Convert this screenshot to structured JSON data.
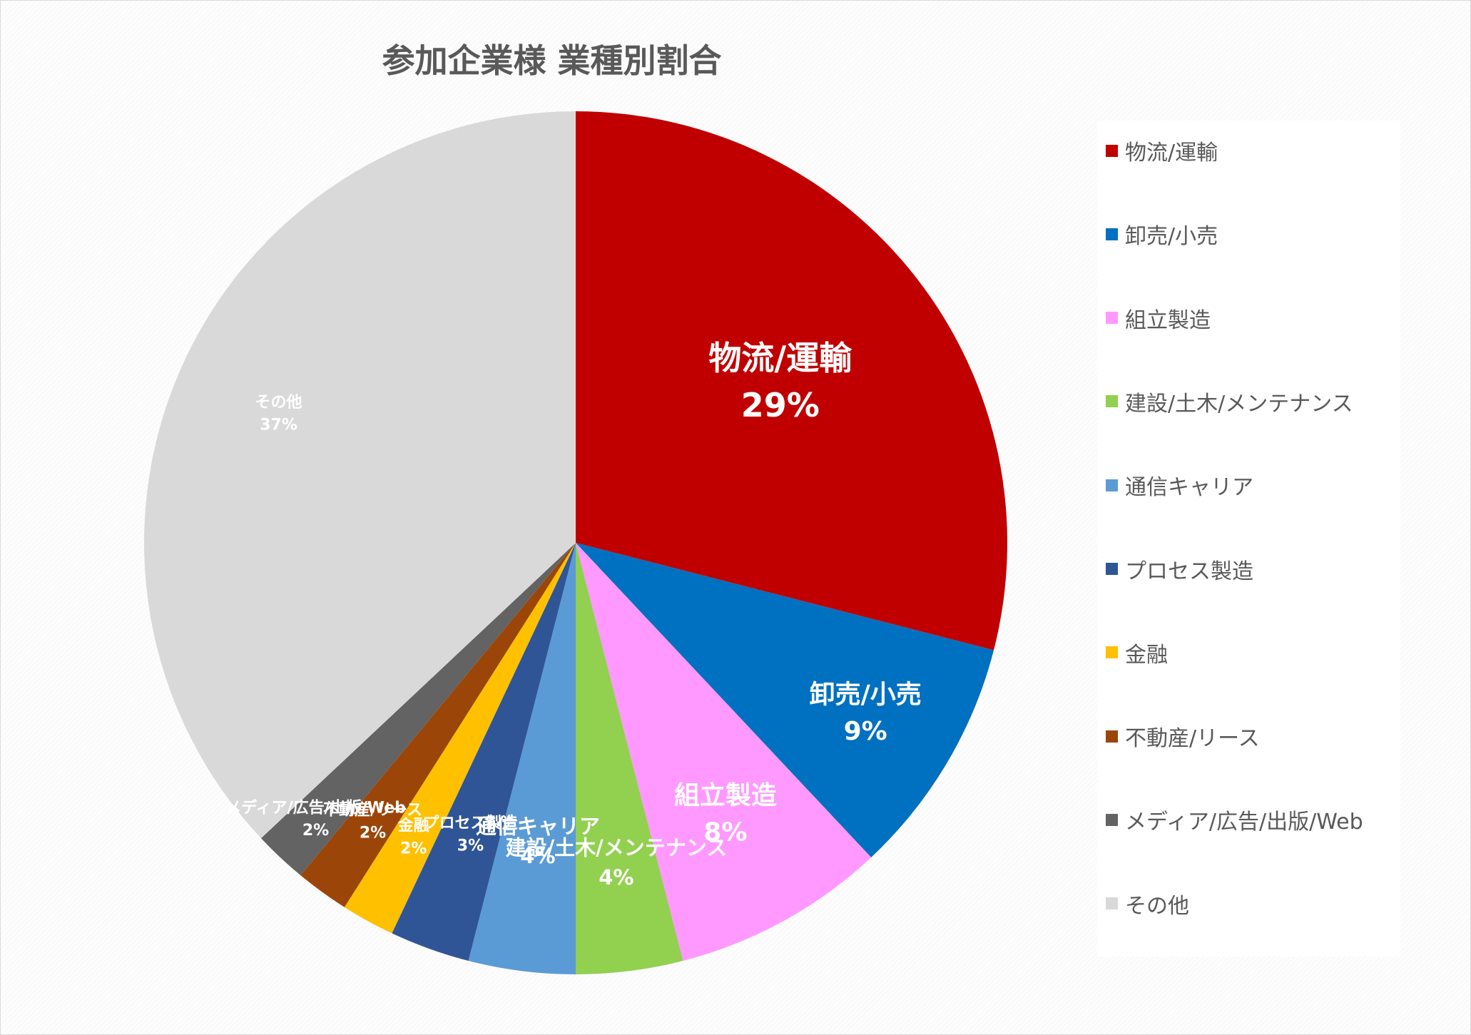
{
  "chart_data": {
    "type": "pie",
    "title": "参加企業様 業種別割合",
    "slices": [
      {
        "name": "物流/運輸",
        "value": 29,
        "label": "29%",
        "color": "#c00000"
      },
      {
        "name": "卸売/小売",
        "value": 9,
        "label": "9%",
        "color": "#0070c0"
      },
      {
        "name": "組立製造",
        "value": 8,
        "label": "8%",
        "color": "#ff99ff"
      },
      {
        "name": "建設/土木/メンテナンス",
        "value": 4,
        "label": "4%",
        "color": "#92d050"
      },
      {
        "name": "通信キャリア",
        "value": 4,
        "label": "4%",
        "color": "#5b9bd5"
      },
      {
        "name": "プロセス製造",
        "value": 3,
        "label": "3%",
        "color": "#2f5597"
      },
      {
        "name": "金融",
        "value": 2,
        "label": "2%",
        "color": "#ffc000"
      },
      {
        "name": "不動産/リース",
        "value": 2,
        "label": "2%",
        "color": "#9c4509"
      },
      {
        "name": "メディア/広告/出版/Web",
        "value": 2,
        "label": "2%",
        "color": "#636363"
      },
      {
        "name": "その他",
        "value": 37,
        "label": "37%",
        "color": "#d9d9d9"
      }
    ],
    "legend_position": "right"
  }
}
